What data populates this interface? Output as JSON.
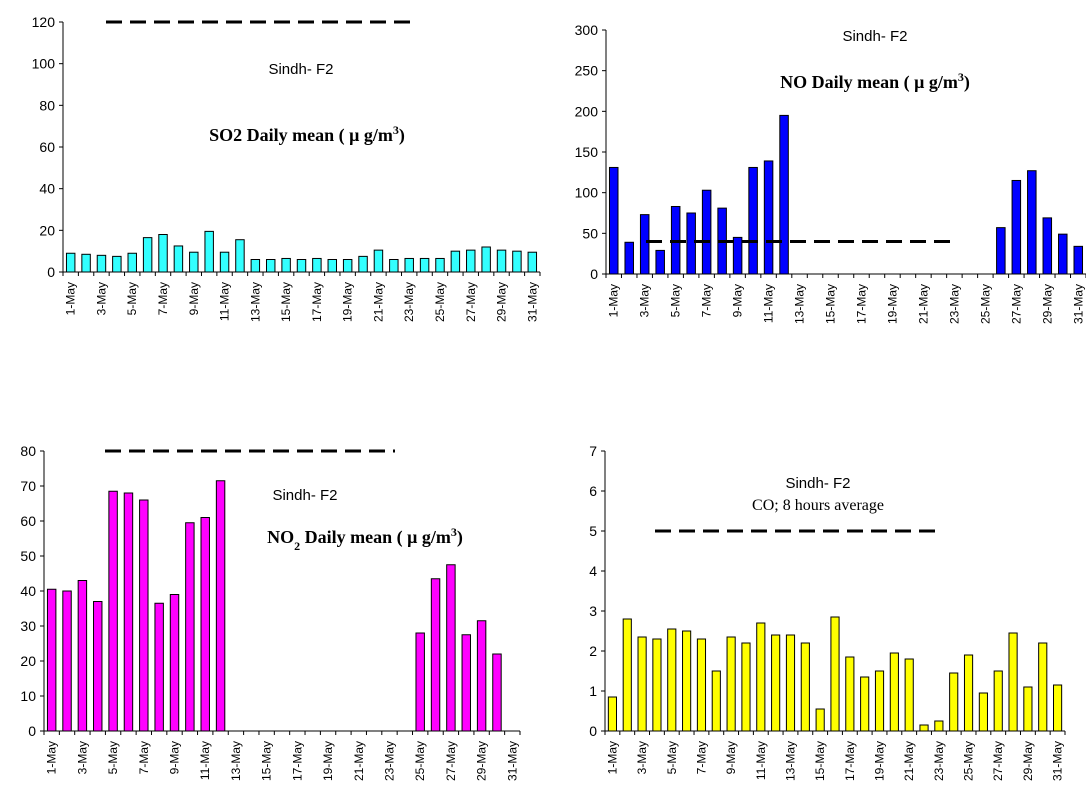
{
  "chart_data": [
    {
      "type": "bar",
      "title": "SO2 Daily mean (μ g/m3)",
      "title_main": "SO2 Daily mean ( μ g/m",
      "title_sup": "3",
      "title_close": ")",
      "subtitle": "Sindh- F2",
      "color": "#33ffff",
      "ylim": [
        0,
        120
      ],
      "yticks": [
        "0",
        "20",
        "40",
        "60",
        "80",
        "100",
        "120"
      ],
      "guideline": 120,
      "categories": [
        "1-May",
        "2-May",
        "3-May",
        "4-May",
        "5-May",
        "6-May",
        "7-May",
        "8-May",
        "9-May",
        "10-May",
        "11-May",
        "12-May",
        "13-May",
        "14-May",
        "15-May",
        "16-May",
        "17-May",
        "18-May",
        "19-May",
        "20-May",
        "21-May",
        "22-May",
        "23-May",
        "24-May",
        "25-May",
        "26-May",
        "27-May",
        "28-May",
        "29-May",
        "30-May",
        "31-May"
      ],
      "tick_labels": [
        "1-May",
        "3-May",
        "5-May",
        "7-May",
        "9-May",
        "11-May",
        "13-May",
        "15-May",
        "17-May",
        "19-May",
        "21-May",
        "23-May",
        "25-May",
        "27-May",
        "29-May",
        "31-May"
      ],
      "values": [
        9,
        8.5,
        8,
        7.5,
        9,
        16.5,
        18,
        12.5,
        9.5,
        19.5,
        9.5,
        15.5,
        6,
        6,
        6.5,
        6,
        6.5,
        6,
        6,
        7.5,
        10.5,
        6,
        6.5,
        6.5,
        6.5,
        10,
        10.5,
        12,
        10.5,
        10,
        9.5
      ]
    },
    {
      "type": "bar",
      "title": "NO Daily mean (μ g/m3)",
      "title_main": "NO Daily mean ( μ g/m",
      "title_sup": "3",
      "title_close": ")",
      "subtitle": "Sindh- F2",
      "color": "#0000ff",
      "ylim": [
        0,
        300
      ],
      "yticks": [
        "0",
        "50",
        "100",
        "150",
        "200",
        "250",
        "300"
      ],
      "guideline": 40,
      "categories": [
        "1-May",
        "2-May",
        "3-May",
        "4-May",
        "5-May",
        "6-May",
        "7-May",
        "8-May",
        "9-May",
        "10-May",
        "11-May",
        "12-May",
        "13-May",
        "14-May",
        "15-May",
        "16-May",
        "17-May",
        "18-May",
        "19-May",
        "20-May",
        "21-May",
        "22-May",
        "23-May",
        "24-May",
        "25-May",
        "26-May",
        "27-May",
        "28-May",
        "29-May",
        "30-May",
        "31-May"
      ],
      "tick_labels": [
        "1-May",
        "3-May",
        "5-May",
        "7-May",
        "9-May",
        "11-May",
        "13-May",
        "15-May",
        "17-May",
        "19-May",
        "21-May",
        "23-May",
        "25-May",
        "27-May",
        "29-May",
        "31-May"
      ],
      "values": [
        131,
        39,
        73,
        29,
        83,
        75,
        103,
        81,
        45,
        131,
        139,
        195,
        null,
        null,
        null,
        null,
        null,
        null,
        null,
        null,
        null,
        null,
        null,
        null,
        null,
        57,
        115,
        127,
        69,
        49,
        34
      ]
    },
    {
      "type": "bar",
      "title": "NO2 Daily mean (μ g/m3)",
      "title_main": "NO",
      "title_sub": "2",
      "title_rest": " Daily mean ( μ g/m",
      "title_sup": "3",
      "title_close": ")",
      "subtitle": "Sindh- F2",
      "color": "#ff00ff",
      "ylim": [
        0,
        80
      ],
      "yticks": [
        "0",
        "10",
        "20",
        "30",
        "40",
        "50",
        "60",
        "70",
        "80"
      ],
      "guideline": 80,
      "categories": [
        "1-May",
        "2-May",
        "3-May",
        "4-May",
        "5-May",
        "6-May",
        "7-May",
        "8-May",
        "9-May",
        "10-May",
        "11-May",
        "12-May",
        "13-May",
        "14-May",
        "15-May",
        "16-May",
        "17-May",
        "18-May",
        "19-May",
        "20-May",
        "21-May",
        "22-May",
        "23-May",
        "24-May",
        "25-May",
        "26-May",
        "27-May",
        "28-May",
        "29-May",
        "30-May",
        "31-May"
      ],
      "tick_labels": [
        "1-May",
        "3-May",
        "5-May",
        "7-May",
        "9-May",
        "11-May",
        "13-May",
        "15-May",
        "17-May",
        "19-May",
        "21-May",
        "23-May",
        "25-May",
        "27-May",
        "29-May",
        "31-May"
      ],
      "values": [
        40.5,
        40,
        43,
        37,
        68.5,
        68,
        66,
        36.5,
        39,
        59.5,
        61,
        71.5,
        null,
        null,
        null,
        null,
        null,
        null,
        null,
        null,
        null,
        null,
        null,
        null,
        28,
        43.5,
        47.5,
        27.5,
        31.5,
        22,
        null
      ]
    },
    {
      "type": "bar",
      "title": "CO; 8 hours average",
      "subtitle": "Sindh- F2",
      "color": "#ffff00",
      "ylim": [
        0,
        7
      ],
      "yticks": [
        "0",
        "1",
        "2",
        "3",
        "4",
        "5",
        "6",
        "7"
      ],
      "guideline": 5,
      "categories": [
        "1-May",
        "2-May",
        "3-May",
        "4-May",
        "5-May",
        "6-May",
        "7-May",
        "8-May",
        "9-May",
        "10-May",
        "11-May",
        "12-May",
        "13-May",
        "14-May",
        "15-May",
        "16-May",
        "17-May",
        "18-May",
        "19-May",
        "20-May",
        "21-May",
        "22-May",
        "23-May",
        "24-May",
        "25-May",
        "26-May",
        "27-May",
        "28-May",
        "29-May",
        "30-May",
        "31-May"
      ],
      "tick_labels": [
        "1-May",
        "3-May",
        "5-May",
        "7-May",
        "9-May",
        "11-May",
        "13-May",
        "15-May",
        "17-May",
        "19-May",
        "21-May",
        "23-May",
        "25-May",
        "27-May",
        "29-May",
        "31-May"
      ],
      "values": [
        0.85,
        2.8,
        2.35,
        2.3,
        2.55,
        2.5,
        2.3,
        1.5,
        2.35,
        2.2,
        2.7,
        2.4,
        2.4,
        2.2,
        0.55,
        2.85,
        1.85,
        1.35,
        1.5,
        1.95,
        1.8,
        0.15,
        0.25,
        1.45,
        1.9,
        0.95,
        1.5,
        2.45,
        1.1,
        2.2,
        1.15
      ]
    }
  ]
}
